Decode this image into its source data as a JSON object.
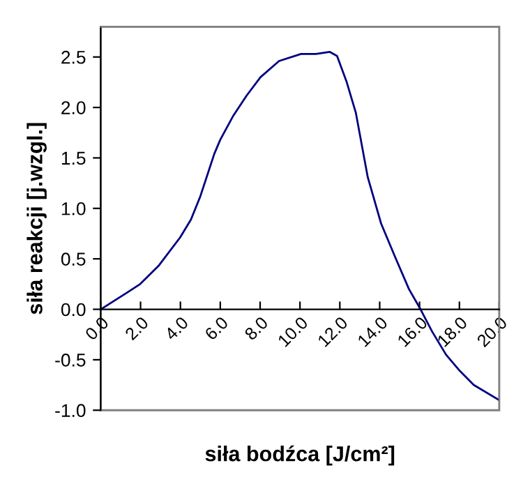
{
  "chart_data": {
    "type": "line",
    "xlabel": "siła bodźca [J/cm²]",
    "ylabel": "siła reakcji [j.wzgl.]",
    "x": [
      0,
      1.28,
      1.98,
      2.9,
      3.98,
      4.53,
      5.0,
      5.7,
      6.0,
      6.63,
      7.33,
      8.02,
      8.95,
      10.05,
      10.8,
      11.5,
      11.86,
      12.33,
      12.8,
      13.4,
      14.07,
      14.77,
      15.47,
      16.05,
      16.63,
      17.33,
      18.02,
      18.72,
      20.0
    ],
    "series": [
      {
        "color": "#000080",
        "values": [
          0,
          0.16,
          0.25,
          0.43,
          0.71,
          0.89,
          1.12,
          1.54,
          1.68,
          1.91,
          2.12,
          2.3,
          2.46,
          2.53,
          2.53,
          2.55,
          2.51,
          2.26,
          1.95,
          1.31,
          0.85,
          0.52,
          0.2,
          0,
          -0.22,
          -0.45,
          -0.61,
          -0.75,
          -0.9
        ]
      }
    ],
    "xlim": [
      0,
      20
    ],
    "ylim": [
      -1.0,
      2.8
    ],
    "xticks": [
      {
        "value": 0,
        "label": "0.0"
      },
      {
        "value": 2,
        "label": "2.0"
      },
      {
        "value": 4,
        "label": "4.0"
      },
      {
        "value": 6,
        "label": "6.0"
      },
      {
        "value": 8,
        "label": "8.0"
      },
      {
        "value": 10,
        "label": "10.0"
      },
      {
        "value": 12,
        "label": "12.0"
      },
      {
        "value": 14,
        "label": "14.0"
      },
      {
        "value": 16,
        "label": "16.0"
      },
      {
        "value": 18,
        "label": "18.0"
      },
      {
        "value": 20,
        "label": "20.0"
      }
    ],
    "yticks": [
      {
        "value": -1.0,
        "label": "-1.0"
      },
      {
        "value": -0.5,
        "label": "-0.5"
      },
      {
        "value": 0.0,
        "label": "0.0"
      },
      {
        "value": 0.5,
        "label": "0.5"
      },
      {
        "value": 1.0,
        "label": "1.0"
      },
      {
        "value": 1.5,
        "label": "1.5"
      },
      {
        "value": 2.0,
        "label": "2.0"
      },
      {
        "value": 2.5,
        "label": "2.5"
      }
    ],
    "grid": false,
    "legend": false,
    "marker": "none",
    "line_style": "solid"
  }
}
